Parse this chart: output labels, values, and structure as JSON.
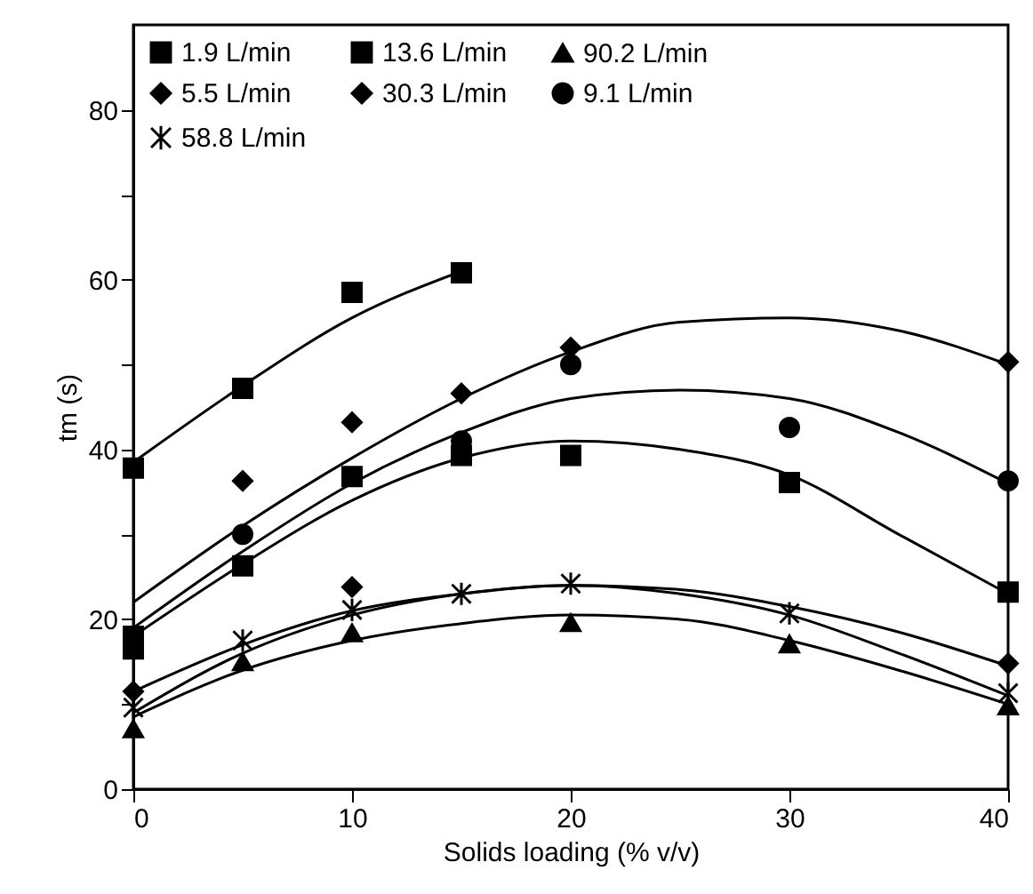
{
  "chart_data": {
    "type": "scatter",
    "xlabel": "Solids loading (% v/v)",
    "ylabel": "tm (s)",
    "xlim": [
      0,
      40
    ],
    "xticks": [
      0,
      10,
      20,
      30,
      40
    ],
    "ylim": [
      0,
      90
    ],
    "yticks": [
      0,
      {
        "value": 10,
        "label": null
      },
      20,
      {
        "value": 30,
        "label": null
      },
      40,
      {
        "value": 50,
        "label": null
      },
      60,
      {
        "value": 70,
        "label": null
      },
      80
    ],
    "grid": false,
    "legend": "top left",
    "series": [
      {
        "name": "1.9 L/min",
        "marker": "square",
        "color": "#000000",
        "x": [
          0,
          5,
          10,
          15
        ],
        "values": [
          37.8,
          47.2,
          58.5,
          60.8
        ]
      },
      {
        "name": "5.5 L/min",
        "marker": "diamond",
        "color": "#000000",
        "x": [
          5,
          10,
          15,
          20,
          40
        ],
        "values": [
          36.3,
          43.2,
          46.6,
          52,
          50.3
        ]
      },
      {
        "name": "9.1 L/min",
        "marker": "circle",
        "color": "#000000",
        "x": [
          5,
          15,
          20,
          30,
          40
        ],
        "values": [
          30,
          41,
          50,
          42.6,
          36.3
        ]
      },
      {
        "name": "13.6 L/min",
        "marker": "square",
        "color": "#000000",
        "x": [
          0,
          0,
          5,
          10,
          15,
          20,
          30,
          40
        ],
        "values": [
          16.5,
          18,
          26.3,
          36.8,
          39.3,
          39.3,
          36.1,
          23.2
        ]
      },
      {
        "name": "30.3 L/min",
        "marker": "diamond",
        "color": "#000000",
        "x": [
          0,
          10,
          40
        ],
        "values": [
          11.5,
          23.8,
          14.8
        ]
      },
      {
        "name": "58.8 L/min",
        "marker": "cross",
        "color": "#000000",
        "x": [
          0,
          5,
          10,
          15,
          20,
          30,
          40
        ],
        "values": [
          9.6,
          17.5,
          21.1,
          23,
          24.2,
          20.7,
          11.3
        ]
      },
      {
        "name": "90.2 L/min",
        "marker": "triangle",
        "color": "#000000",
        "x": [
          0,
          5,
          10,
          20,
          30,
          40
        ],
        "values": [
          7.1,
          15,
          18.4,
          19.6,
          17.1,
          9.8
        ]
      },
      {
        "type": "line",
        "color": "#000000",
        "x": [
          0,
          5,
          10,
          15
        ],
        "values": [
          38.5,
          47.5,
          55.5,
          61
        ]
      },
      {
        "type": "line",
        "color": "#000000",
        "x": [
          0,
          5,
          10,
          15,
          20,
          25,
          30,
          35,
          40
        ],
        "values": [
          22,
          31,
          39,
          46,
          51.5,
          55,
          55.5,
          54,
          50
        ]
      },
      {
        "type": "line",
        "color": "#000000",
        "x": [
          0,
          5,
          10,
          15,
          20,
          25,
          30,
          35,
          40
        ],
        "values": [
          19,
          28,
          36,
          42,
          46,
          47,
          46,
          42,
          36
        ]
      },
      {
        "type": "line",
        "color": "#000000",
        "x": [
          0,
          5,
          10,
          15,
          20,
          25,
          30,
          35,
          40
        ],
        "values": [
          18,
          26.5,
          34,
          39,
          41,
          40,
          37,
          30,
          23
        ]
      },
      {
        "type": "line",
        "color": "#000000",
        "x": [
          0,
          5,
          10,
          15,
          20,
          25,
          30,
          35,
          40
        ],
        "values": [
          11.5,
          17,
          21,
          23,
          24,
          23.5,
          21.5,
          18.5,
          14.5
        ]
      },
      {
        "type": "line",
        "color": "#000000",
        "x": [
          0,
          5,
          10,
          15,
          20,
          25,
          30,
          35,
          40
        ],
        "values": [
          9,
          16,
          20.5,
          23,
          24,
          23,
          20.5,
          16,
          11
        ]
      },
      {
        "type": "line",
        "color": "#000000",
        "x": [
          0,
          5,
          10,
          15,
          20,
          25,
          30,
          35,
          40
        ],
        "values": [
          8.5,
          14,
          17.5,
          19.5,
          20.5,
          20,
          17.5,
          14,
          10
        ]
      }
    ]
  }
}
